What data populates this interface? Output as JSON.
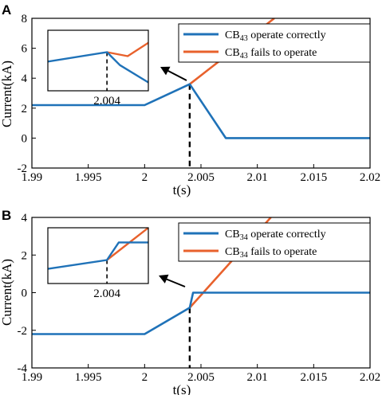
{
  "colors": {
    "correct": "#1f72b8",
    "fails": "#e8612c"
  },
  "chart_data": [
    {
      "panel_label": "A",
      "type": "line",
      "xlabel": "t(s)",
      "ylabel": "Current(kA)",
      "xlim": [
        1.99,
        2.02
      ],
      "ylim": [
        -2,
        8
      ],
      "xticks": [
        1.99,
        1.995,
        2,
        2.005,
        2.01,
        2.015,
        2.02
      ],
      "xtick_labels": [
        "1.99",
        "1.995",
        "2",
        "2.005",
        "2.01",
        "2.015",
        "2.02"
      ],
      "yticks": [
        -2,
        0,
        2,
        4,
        6,
        8
      ],
      "ytick_labels": [
        "-2",
        "0",
        "2",
        "4",
        "6",
        "8"
      ],
      "vline_x": 2.004,
      "legend_position": "top-right",
      "series": [
        {
          "key": "correct",
          "name": "CB",
          "sub": "43",
          "name_suffix": " operate correctly",
          "x": [
            1.99,
            2.0,
            2.004,
            2.0072,
            2.02
          ],
          "y": [
            2.2,
            2.2,
            3.6,
            0.0,
            0.0
          ]
        },
        {
          "key": "fails",
          "name": "CB",
          "sub": "43",
          "name_suffix": " fails to operate",
          "x": [
            2.004,
            2.0115
          ],
          "y": [
            3.6,
            8.0
          ]
        }
      ],
      "inset": {
        "xlim": [
          2.003,
          2.0047
        ],
        "ylim": [
          3.46,
          3.75
        ],
        "xtick_label": "2.004",
        "xtick_value": 2.004,
        "series": [
          {
            "key": "correct",
            "x": [
              2.003,
              2.004,
              2.00422,
              2.0047
            ],
            "y": [
              3.6,
              3.645,
              3.583,
              3.5
            ]
          },
          {
            "key": "fails",
            "x": [
              2.004,
              2.00435,
              2.0047
            ],
            "y": [
              3.645,
              3.626,
              3.69
            ]
          }
        ]
      }
    },
    {
      "panel_label": "B",
      "type": "line",
      "xlabel": "t(s)",
      "ylabel": "Current(kA)",
      "xlim": [
        1.99,
        2.02
      ],
      "ylim": [
        -4,
        4
      ],
      "xticks": [
        1.99,
        1.995,
        2,
        2.005,
        2.01,
        2.015,
        2.02
      ],
      "xtick_labels": [
        "1.99",
        "1.995",
        "2",
        "2.005",
        "2.01",
        "2.015",
        "2.02"
      ],
      "yticks": [
        -4,
        -2,
        0,
        2,
        4
      ],
      "ytick_labels": [
        "-4",
        "-2",
        "0",
        "2",
        "4"
      ],
      "vline_x": 2.004,
      "legend_position": "top-right",
      "series": [
        {
          "key": "correct",
          "name": "CB",
          "sub": "34",
          "name_suffix": " operate correctly",
          "x": [
            1.99,
            2.0,
            2.004,
            2.0043,
            2.02
          ],
          "y": [
            -2.2,
            -2.2,
            -0.8,
            0.0,
            0.0
          ]
        },
        {
          "key": "fails",
          "name": "CB",
          "sub": "34",
          "name_suffix": " fails to operate",
          "x": [
            2.004,
            2.0112
          ],
          "y": [
            -0.8,
            4.0
          ]
        }
      ],
      "inset": {
        "xlim": [
          2.003,
          2.0047
        ],
        "ylim": [
          -1.0,
          -0.62
        ],
        "xtick_label": "2.004",
        "xtick_value": 2.004,
        "series": [
          {
            "key": "correct",
            "x": [
              2.003,
              2.004,
              2.0042,
              2.0047
            ],
            "y": [
              -0.9,
              -0.84,
              -0.72,
              -0.72
            ]
          },
          {
            "key": "fails",
            "x": [
              2.004,
              2.0047
            ],
            "y": [
              -0.84,
              -0.62
            ]
          }
        ]
      }
    }
  ]
}
